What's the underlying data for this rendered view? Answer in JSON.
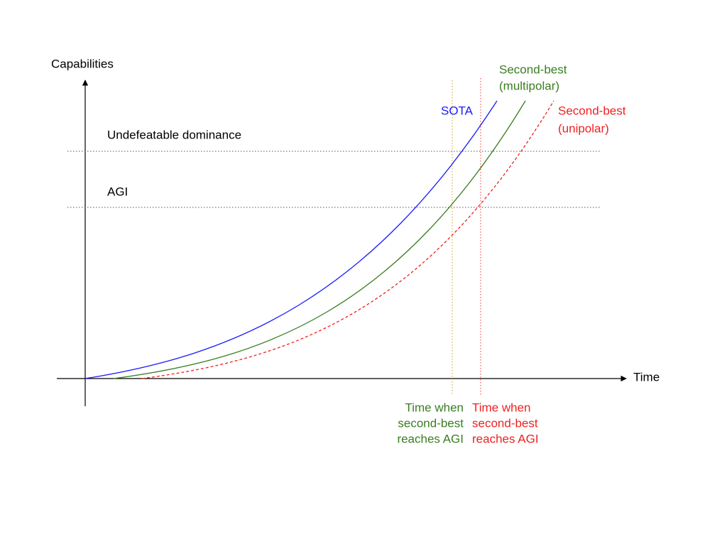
{
  "axes": {
    "y_label": "Capabilities",
    "x_label": "Time"
  },
  "thresholds": [
    {
      "label": "Undefeatable dominance"
    },
    {
      "label": "AGI"
    }
  ],
  "curves": [
    {
      "lines": [
        "SOTA"
      ]
    },
    {
      "lines": [
        "Second-best",
        "(multipolar)"
      ]
    },
    {
      "lines": [
        "Second-best",
        "(unipolar)"
      ]
    }
  ],
  "annotations": [
    {
      "lines": [
        "Time when",
        "second-best",
        "reaches AGI"
      ]
    },
    {
      "lines": [
        "Time when",
        "second-best",
        "reaches AGI"
      ]
    }
  ]
}
